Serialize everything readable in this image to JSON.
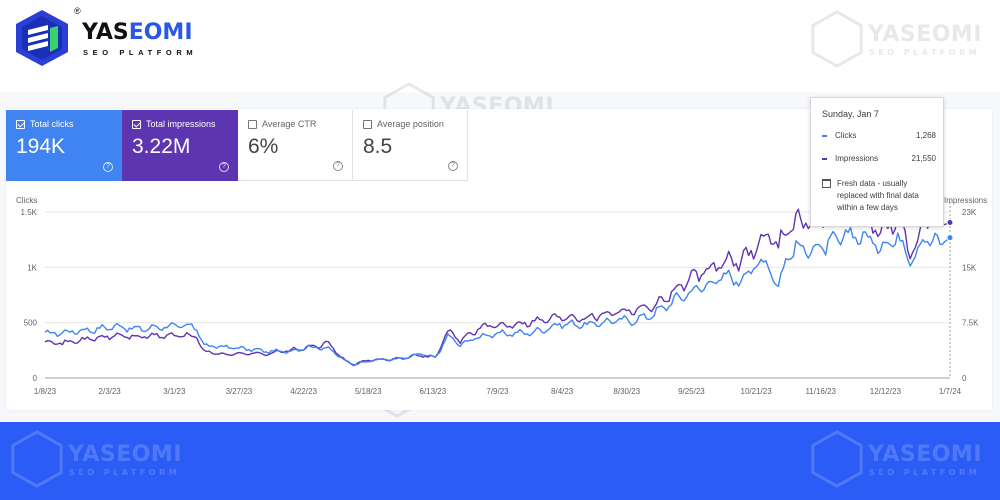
{
  "brand": {
    "name_part1": "YAS",
    "name_part2": "EOMI",
    "tagline": "SEO PLATFORM",
    "reg": "®"
  },
  "watermark": {
    "name": "YASEOMI",
    "tagline": "SEO PLATFORM"
  },
  "metrics": [
    {
      "label": "Total clicks",
      "value": "194K",
      "selected": true,
      "help": "?"
    },
    {
      "label": "Total impressions",
      "value": "3.22M",
      "selected": true,
      "help": "?"
    },
    {
      "label": "Average CTR",
      "value": "6%",
      "selected": false,
      "help": "?"
    },
    {
      "label": "Average position",
      "value": "8.5",
      "selected": false,
      "help": "?"
    }
  ],
  "colors": {
    "clicks": "#3f84f0",
    "impressions": "#5e35b1",
    "brand_blue": "#2b5cf5"
  },
  "tooltip": {
    "date": "Sunday, Jan 7",
    "rows": [
      {
        "label": "Clicks",
        "value": "1,268"
      },
      {
        "label": "Impressions",
        "value": "21,550"
      }
    ],
    "note": "Fresh data - usually replaced with final data within a few days",
    "icon": "calendar-icon"
  },
  "chart_data": {
    "type": "line",
    "left_axis": {
      "title": "Clicks",
      "ticks": [
        "0",
        "500",
        "1K",
        "1.5K"
      ],
      "range": [
        0,
        1500
      ]
    },
    "right_axis": {
      "title": "Impressions",
      "ticks": [
        "0",
        "7.5K",
        "15K",
        "23K"
      ],
      "range": [
        0,
        23000
      ]
    },
    "x_labels": [
      "1/8/23",
      "2/3/23",
      "3/1/23",
      "3/27/23",
      "4/22/23",
      "5/18/23",
      "6/13/23",
      "7/9/23",
      "8/4/23",
      "8/30/23",
      "9/25/23",
      "10/21/23",
      "11/16/23",
      "12/12/23",
      "1/7/24"
    ],
    "x_range": [
      "2023-01-08",
      "2024-01-07"
    ],
    "grid": true,
    "series": [
      {
        "name": "Clicks",
        "axis": "left",
        "anchors": [
          [
            0,
            400
          ],
          [
            8,
            410
          ],
          [
            18,
            430
          ],
          [
            26,
            440
          ],
          [
            35,
            470
          ],
          [
            45,
            440
          ],
          [
            52,
            450
          ],
          [
            60,
            470
          ],
          [
            75,
            460
          ],
          [
            78,
            290
          ],
          [
            90,
            280
          ],
          [
            100,
            260
          ],
          [
            110,
            240
          ],
          [
            120,
            240
          ],
          [
            130,
            280
          ],
          [
            140,
            270
          ],
          [
            148,
            150
          ],
          [
            152,
            120
          ],
          [
            160,
            160
          ],
          [
            170,
            170
          ],
          [
            178,
            180
          ],
          [
            185,
            220
          ],
          [
            192,
            180
          ],
          [
            198,
            380
          ],
          [
            205,
            300
          ],
          [
            215,
            380
          ],
          [
            225,
            400
          ],
          [
            240,
            410
          ],
          [
            255,
            490
          ],
          [
            268,
            480
          ],
          [
            280,
            520
          ],
          [
            290,
            520
          ],
          [
            300,
            580
          ],
          [
            310,
            700
          ],
          [
            318,
            780
          ],
          [
            328,
            860
          ],
          [
            335,
            920
          ],
          [
            342,
            880
          ],
          [
            350,
            1020
          ],
          [
            356,
            1050
          ],
          [
            362,
            800
          ],
          [
            365,
            1100
          ],
          [
            372,
            1180
          ],
          [
            380,
            1160
          ],
          [
            388,
            1220
          ],
          [
            395,
            1290
          ],
          [
            402,
            1290
          ],
          [
            412,
            1190
          ],
          [
            420,
            1270
          ],
          [
            426,
            1100
          ],
          [
            430,
            1150
          ],
          [
            434,
            1280
          ],
          [
            441,
            1200
          ],
          [
            446,
            1268
          ]
        ]
      },
      {
        "name": "Impressions",
        "axis": "right",
        "anchors": [
          [
            0,
            5200
          ],
          [
            8,
            4800
          ],
          [
            18,
            5300
          ],
          [
            26,
            5500
          ],
          [
            35,
            5900
          ],
          [
            45,
            5700
          ],
          [
            52,
            5800
          ],
          [
            60,
            5900
          ],
          [
            75,
            5800
          ],
          [
            78,
            3600
          ],
          [
            90,
            3300
          ],
          [
            100,
            3400
          ],
          [
            110,
            3400
          ],
          [
            120,
            3800
          ],
          [
            130,
            4200
          ],
          [
            140,
            4800
          ],
          [
            148,
            2300
          ],
          [
            152,
            1900
          ],
          [
            160,
            2500
          ],
          [
            170,
            2600
          ],
          [
            178,
            2800
          ],
          [
            185,
            3200
          ],
          [
            192,
            2800
          ],
          [
            198,
            6500
          ],
          [
            205,
            5200
          ],
          [
            215,
            7000
          ],
          [
            225,
            7300
          ],
          [
            240,
            7800
          ],
          [
            255,
            8500
          ],
          [
            268,
            8400
          ],
          [
            280,
            9200
          ],
          [
            290,
            9500
          ],
          [
            300,
            10000
          ],
          [
            310,
            12000
          ],
          [
            318,
            13800
          ],
          [
            328,
            15000
          ],
          [
            335,
            16200
          ],
          [
            342,
            16000
          ],
          [
            350,
            18200
          ],
          [
            356,
            20000
          ],
          [
            362,
            18000
          ],
          [
            365,
            21000
          ],
          [
            372,
            21800
          ],
          [
            380,
            21500
          ],
          [
            388,
            22000
          ],
          [
            395,
            22500
          ],
          [
            402,
            22800
          ],
          [
            412,
            20000
          ],
          [
            420,
            22000
          ],
          [
            426,
            17500
          ],
          [
            430,
            19000
          ],
          [
            434,
            22000
          ],
          [
            441,
            21000
          ],
          [
            446,
            21550
          ]
        ]
      }
    ],
    "highlight_date": "2024-01-07"
  }
}
